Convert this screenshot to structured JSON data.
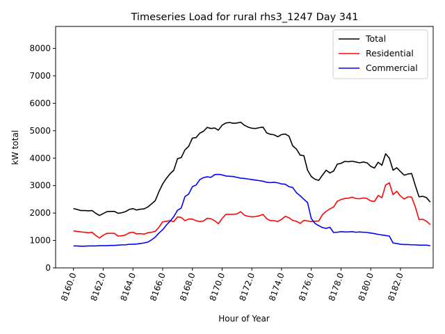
{
  "chart_data": {
    "type": "line",
    "title": "Timeseries Load for rural rhs3_1247  Day 341",
    "xlabel": "Hour of Year",
    "ylabel": "kW total",
    "xlim": [
      8158.8,
      8184.2
    ],
    "ylim": [
      0,
      8800
    ],
    "grid": false,
    "legend_position": "top-right",
    "x_ticks": [
      8160,
      8162,
      8164,
      8166,
      8168,
      8170,
      8172,
      8174,
      8176,
      8178,
      8180,
      8182
    ],
    "x_tick_labels": [
      "8160.0",
      "8162.0",
      "8164.0",
      "8166.0",
      "8168.0",
      "8170.0",
      "8172.0",
      "8174.0",
      "8176.0",
      "8178.0",
      "8180.0",
      "8182.0"
    ],
    "y_ticks": [
      0,
      1000,
      2000,
      3000,
      4000,
      5000,
      6000,
      7000,
      8000
    ],
    "y_tick_labels": [
      "0",
      "1000",
      "2000",
      "3000",
      "4000",
      "5000",
      "6000",
      "7000",
      "8000"
    ],
    "x_start": 8160,
    "x_step": 0.25,
    "series": [
      {
        "name": "Total",
        "color": "#000000",
        "values": [
          2160,
          2130,
          2090,
          2090,
          2080,
          2090,
          1990,
          1910,
          1980,
          2050,
          2060,
          2060,
          1990,
          2010,
          2050,
          2130,
          2160,
          2110,
          2140,
          2150,
          2220,
          2330,
          2450,
          2780,
          3060,
          3260,
          3430,
          3560,
          3980,
          4020,
          4300,
          4430,
          4730,
          4750,
          4910,
          4980,
          5120,
          5080,
          5100,
          5020,
          5200,
          5280,
          5300,
          5270,
          5280,
          5310,
          5200,
          5130,
          5090,
          5080,
          5110,
          5130,
          4920,
          4870,
          4850,
          4780,
          4860,
          4880,
          4800,
          4450,
          4330,
          4110,
          4090,
          3560,
          3330,
          3230,
          3190,
          3380,
          3560,
          3460,
          3530,
          3780,
          3810,
          3880,
          3870,
          3890,
          3860,
          3830,
          3860,
          3830,
          3700,
          3640,
          3850,
          3740,
          4160,
          4000,
          3560,
          3650,
          3510,
          3380,
          3420,
          3440,
          3000,
          2590,
          2610,
          2560,
          2400
        ]
      },
      {
        "name": "Residential",
        "color": "#ff0000",
        "values": [
          1350,
          1330,
          1310,
          1300,
          1280,
          1300,
          1180,
          1090,
          1190,
          1260,
          1260,
          1260,
          1160,
          1170,
          1200,
          1280,
          1300,
          1240,
          1250,
          1230,
          1280,
          1300,
          1330,
          1480,
          1680,
          1700,
          1720,
          1690,
          1860,
          1840,
          1720,
          1780,
          1780,
          1720,
          1690,
          1710,
          1810,
          1790,
          1720,
          1610,
          1800,
          1950,
          1950,
          1950,
          1970,
          2050,
          1920,
          1880,
          1860,
          1870,
          1900,
          1950,
          1790,
          1720,
          1720,
          1690,
          1770,
          1880,
          1830,
          1730,
          1700,
          1620,
          1730,
          1710,
          1690,
          1700,
          1710,
          1940,
          2060,
          2150,
          2220,
          2430,
          2490,
          2530,
          2540,
          2580,
          2530,
          2520,
          2550,
          2530,
          2440,
          2420,
          2640,
          2560,
          3020,
          3100,
          2670,
          2790,
          2620,
          2510,
          2590,
          2580,
          2220,
          1760,
          1770,
          1700,
          1580
        ]
      },
      {
        "name": "Commercial",
        "color": "#0000ff",
        "values": [
          800,
          800,
          790,
          790,
          800,
          800,
          800,
          810,
          810,
          810,
          820,
          820,
          830,
          840,
          840,
          860,
          860,
          870,
          890,
          910,
          940,
          1020,
          1120,
          1270,
          1390,
          1560,
          1700,
          1870,
          2100,
          2180,
          2600,
          2690,
          2960,
          3020,
          3220,
          3290,
          3320,
          3300,
          3400,
          3410,
          3390,
          3350,
          3340,
          3330,
          3300,
          3270,
          3260,
          3240,
          3220,
          3200,
          3180,
          3160,
          3120,
          3110,
          3120,
          3100,
          3060,
          3050,
          2960,
          2930,
          2740,
          2630,
          2500,
          2380,
          1800,
          1620,
          1540,
          1470,
          1440,
          1480,
          1290,
          1300,
          1320,
          1310,
          1310,
          1320,
          1300,
          1310,
          1300,
          1290,
          1270,
          1250,
          1220,
          1200,
          1180,
          1160,
          910,
          890,
          860,
          850,
          850,
          840,
          840,
          830,
          830,
          830,
          810
        ]
      }
    ]
  }
}
